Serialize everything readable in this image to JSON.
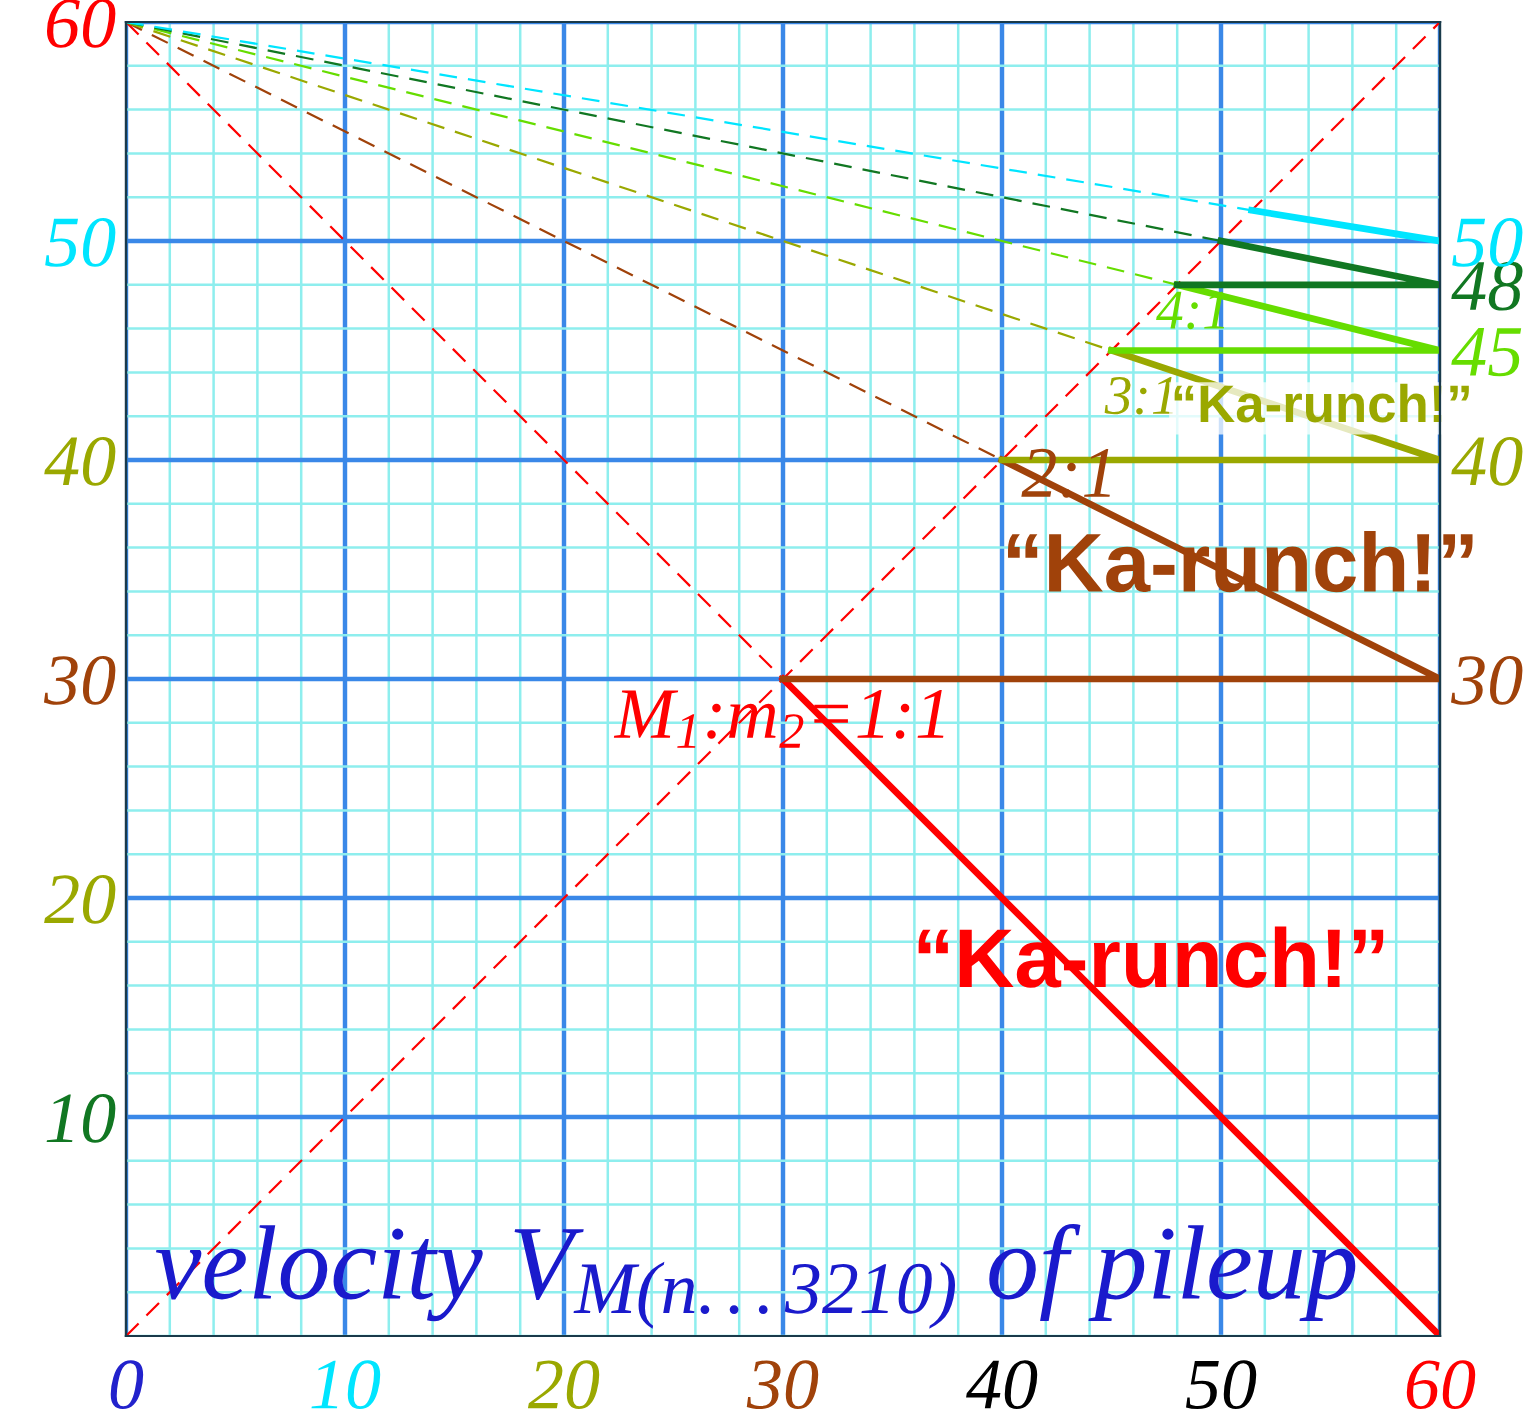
{
  "chart_data": {
    "type": "line",
    "xlim": [
      0,
      60
    ],
    "ylim": [
      0,
      60
    ],
    "xticks": [
      {
        "value": 0,
        "label": "0"
      },
      {
        "value": 2,
        "label": null
      },
      {
        "value": 4,
        "label": null
      },
      {
        "value": 6,
        "label": null
      },
      {
        "value": 8,
        "label": null
      },
      {
        "value": 10,
        "label": "10"
      },
      {
        "value": 12,
        "label": null
      },
      {
        "value": 14,
        "label": null
      },
      {
        "value": 16,
        "label": null
      },
      {
        "value": 18,
        "label": null
      },
      {
        "value": 20,
        "label": "20"
      },
      {
        "value": 22,
        "label": null
      },
      {
        "value": 24,
        "label": null
      },
      {
        "value": 26,
        "label": null
      },
      {
        "value": 28,
        "label": null
      },
      {
        "value": 30,
        "label": "30"
      },
      {
        "value": 32,
        "label": null
      },
      {
        "value": 34,
        "label": null
      },
      {
        "value": 36,
        "label": null
      },
      {
        "value": 38,
        "label": null
      },
      {
        "value": 40,
        "label": "40"
      },
      {
        "value": 42,
        "label": null
      },
      {
        "value": 44,
        "label": null
      },
      {
        "value": 46,
        "label": null
      },
      {
        "value": 48,
        "label": null
      },
      {
        "value": 50,
        "label": "50"
      },
      {
        "value": 52,
        "label": null
      },
      {
        "value": 54,
        "label": null
      },
      {
        "value": 56,
        "label": null
      },
      {
        "value": 58,
        "label": null
      },
      {
        "value": 60,
        "label": "60"
      }
    ],
    "yticks": [
      {
        "value": 0,
        "label": null
      },
      {
        "value": 2,
        "label": null
      },
      {
        "value": 4,
        "label": null
      },
      {
        "value": 6,
        "label": null
      },
      {
        "value": 8,
        "label": null
      },
      {
        "value": 10,
        "label": "10"
      },
      {
        "value": 12,
        "label": null
      },
      {
        "value": 14,
        "label": null
      },
      {
        "value": 16,
        "label": null
      },
      {
        "value": 18,
        "label": null
      },
      {
        "value": 20,
        "label": "20"
      },
      {
        "value": 22,
        "label": null
      },
      {
        "value": 24,
        "label": null
      },
      {
        "value": 26,
        "label": null
      },
      {
        "value": 28,
        "label": null
      },
      {
        "value": 30,
        "label": "30"
      },
      {
        "value": 32,
        "label": null
      },
      {
        "value": 34,
        "label": null
      },
      {
        "value": 36,
        "label": null
      },
      {
        "value": 38,
        "label": null
      },
      {
        "value": 40,
        "label": "40"
      },
      {
        "value": 42,
        "label": null
      },
      {
        "value": 44,
        "label": null
      },
      {
        "value": 46,
        "label": null
      },
      {
        "value": 48,
        "label": null
      },
      {
        "value": 50,
        "label": "50"
      },
      {
        "value": 52,
        "label": null
      },
      {
        "value": 54,
        "label": null
      },
      {
        "value": 56,
        "label": null
      },
      {
        "value": 58,
        "label": null
      },
      {
        "value": 60,
        "label": "60"
      }
    ],
    "y2lim": [
      0,
      60
    ],
    "y2ticks": [
      30,
      40,
      45,
      48,
      50
    ],
    "grid": true,
    "marker": "none",
    "series": [
      {
        "color": "#ff0000",
        "line_style": "dashed",
        "x": [
          0,
          60
        ],
        "values": [
          0,
          60
        ]
      },
      {
        "color": "#ff0000",
        "line_style": "dashed",
        "x": [
          0,
          30
        ],
        "values": [
          60,
          30
        ]
      },
      {
        "color": "#a0420a",
        "line_style": "dashed",
        "x": [
          0,
          40
        ],
        "values": [
          60,
          40
        ]
      },
      {
        "color": "#9aa800",
        "line_style": "dashed",
        "x": [
          0,
          45
        ],
        "values": [
          60,
          45
        ]
      },
      {
        "color": "#66dd00",
        "line_style": "dashed",
        "x": [
          0,
          48
        ],
        "values": [
          60,
          48
        ]
      },
      {
        "color": "#117722",
        "line_style": "dashed",
        "x": [
          0,
          50
        ],
        "values": [
          60,
          50
        ]
      },
      {
        "color": "#00e5ff",
        "line_style": "dashed",
        "x": [
          0,
          51.4
        ],
        "values": [
          60,
          51.4
        ]
      },
      {
        "color": "#ff0000",
        "line_style": "solid",
        "x": [
          60,
          30
        ],
        "values": [
          0,
          30
        ]
      },
      {
        "color": "#a0420a",
        "line_style": "solid",
        "x": [
          30,
          60,
          40
        ],
        "values": [
          30,
          30,
          40
        ]
      },
      {
        "color": "#9aa800",
        "line_style": "solid",
        "x": [
          40,
          60,
          45
        ],
        "values": [
          40,
          40,
          45
        ]
      },
      {
        "color": "#66dd00",
        "line_style": "solid",
        "x": [
          45,
          60,
          48
        ],
        "values": [
          45,
          45,
          48
        ]
      },
      {
        "color": "#117722",
        "line_style": "solid",
        "x": [
          48,
          60,
          50
        ],
        "values": [
          48,
          48,
          50
        ]
      },
      {
        "color": "#00e5ff",
        "line_style": "solid",
        "x": [
          51.4,
          60
        ],
        "values": [
          51.4,
          50
        ]
      }
    ],
    "annotations": [
      "M$_{1}$:m$_{2}$=1:1",
      "“Ka-runch!”",
      "2:1",
      "“Ka-runch!”",
      "3:1",
      "“Ka-runch!”",
      "4:1",
      "velocity V$_{M(n...3210)}$ of pileup"
    ]
  }
}
